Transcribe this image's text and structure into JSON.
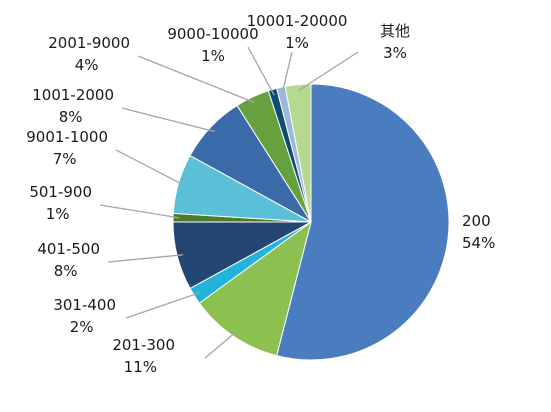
{
  "chart_data": {
    "type": "pie",
    "title": "",
    "start_angle_deg": 0,
    "direction": "clockwise",
    "legend": "none",
    "slices": [
      {
        "label": "200",
        "value": 54,
        "percent_label": "54%",
        "color": "#4a7cc0"
      },
      {
        "label": "201-300",
        "value": 11,
        "percent_label": "11%",
        "color": "#8cc152"
      },
      {
        "label": "301-400",
        "value": 2,
        "percent_label": "2%",
        "color": "#21b3d8"
      },
      {
        "label": "401-500",
        "value": 8,
        "percent_label": "8%",
        "color": "#254673"
      },
      {
        "label": "501-900",
        "value": 1,
        "percent_label": "1%",
        "color": "#4b7b2f"
      },
      {
        "label": "9001-1000",
        "value": 7,
        "percent_label": "7%",
        "color": "#59c0d8"
      },
      {
        "label": "1001-2000",
        "value": 8,
        "percent_label": "8%",
        "color": "#3a6aa8"
      },
      {
        "label": "2001-9000",
        "value": 4,
        "percent_label": "4%",
        "color": "#67a13f"
      },
      {
        "label": "9000-10000",
        "value": 1,
        "percent_label": "1%",
        "color": "#114a73"
      },
      {
        "label": "10001-20000",
        "value": 1,
        "percent_label": "1%",
        "color": "#9cb8e0"
      },
      {
        "label": "其他",
        "value": 3,
        "percent_label": "3%",
        "color": "#b5d990"
      }
    ]
  }
}
